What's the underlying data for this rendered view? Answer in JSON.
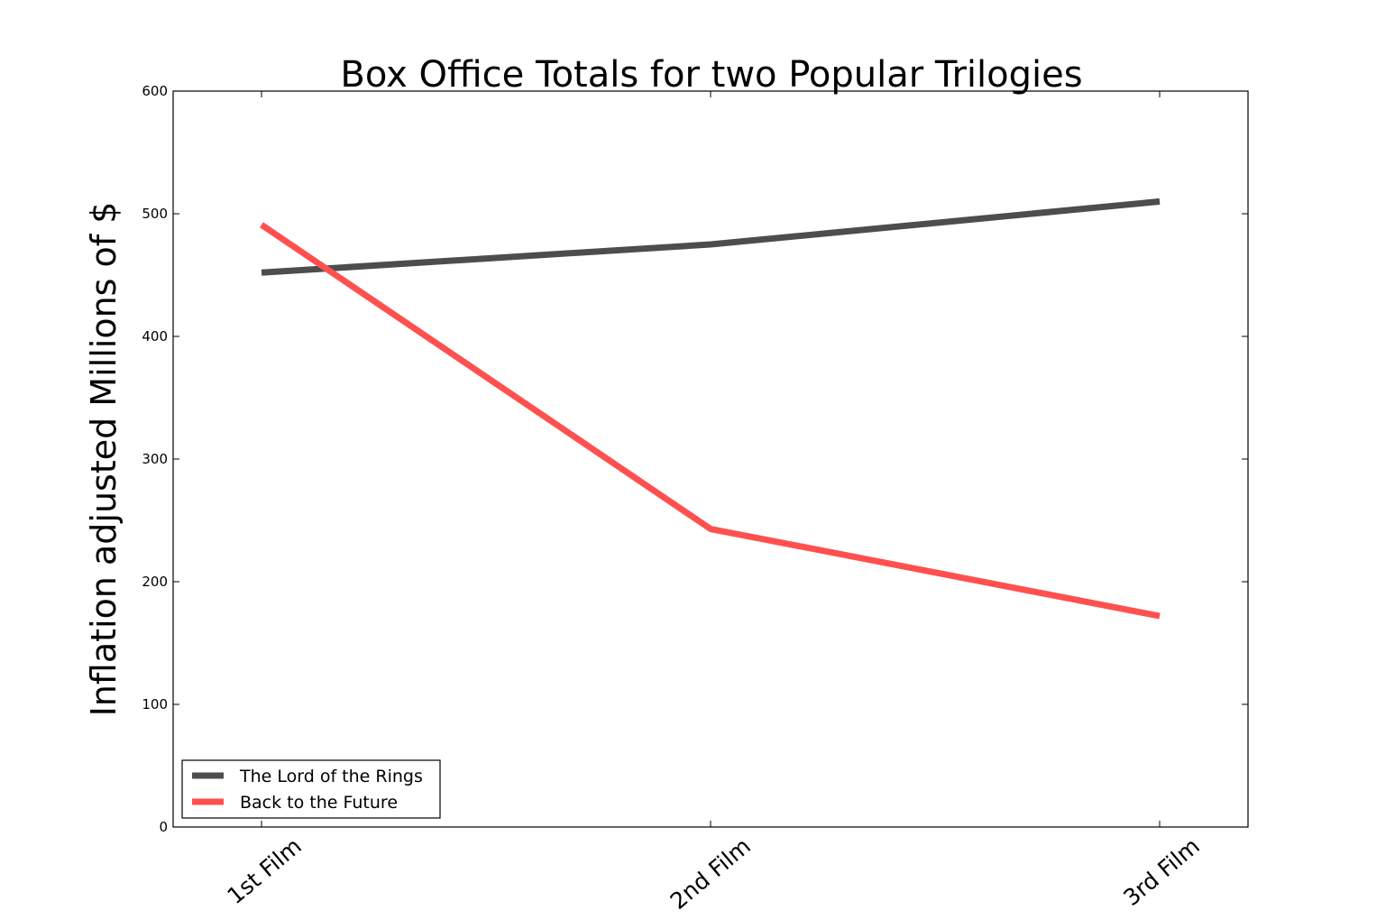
{
  "chart_data": {
    "type": "line",
    "title": "Box Office Totals for two Popular Trilogies",
    "xlabel": "",
    "ylabel": "Inflation adjusted Millions of $",
    "categories": [
      "1st Film",
      "2nd Film",
      "3rd Film"
    ],
    "ylim": [
      0,
      600
    ],
    "yticks": [
      0,
      100,
      200,
      300,
      400,
      500,
      600
    ],
    "grid": false,
    "legend_position": "lower-left",
    "series": [
      {
        "name": "The Lord of the Rings",
        "values": [
          452,
          475,
          510
        ],
        "color": "#4d4d4d"
      },
      {
        "name": "Back to the Future",
        "values": [
          491,
          243,
          172
        ],
        "color": "#ff5050"
      }
    ]
  }
}
